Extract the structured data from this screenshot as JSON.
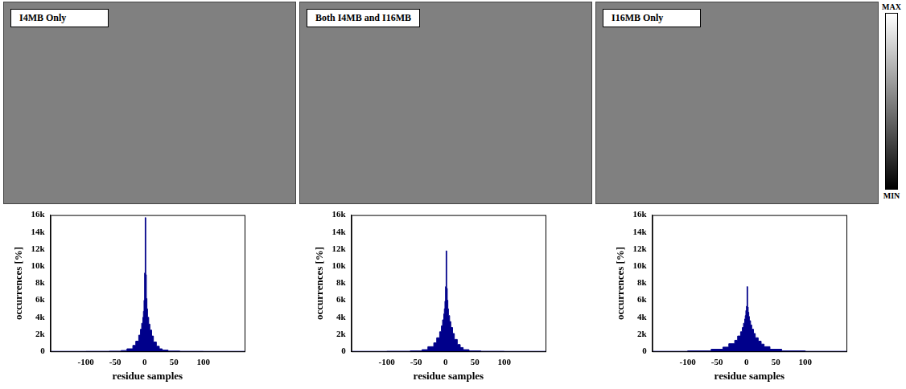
{
  "residue_images": [
    {
      "title": "I4MB Only"
    },
    {
      "title": "Both I4MB and I16MB"
    },
    {
      "title": "I16MB Only"
    }
  ],
  "colorbar": {
    "max_label": "MAX",
    "min_label": "MIN"
  },
  "chart_data": [
    {
      "type": "histogram",
      "color": "#00008b",
      "grid": false,
      "x_label": "residue samples",
      "y_label": "occurrences [%]",
      "bins": [
        -160,
        -100,
        -60,
        -40,
        -30,
        -20,
        -15,
        -10,
        -7,
        -5,
        -3,
        -2,
        -1,
        0,
        1,
        2,
        3,
        4,
        5,
        7,
        9,
        12,
        15,
        20,
        25,
        30,
        40,
        60,
        100,
        170
      ],
      "values": [
        0,
        10,
        30,
        100,
        300,
        700,
        1200,
        1900,
        2600,
        3300,
        4000,
        4700,
        6000,
        9200,
        15700,
        9000,
        6200,
        5000,
        4000,
        3200,
        2500,
        1800,
        1100,
        600,
        300,
        150,
        40,
        10,
        0
      ],
      "xlim": [
        -160,
        170
      ],
      "xticks": [
        -100,
        -50,
        0,
        50,
        100
      ],
      "ylim": [
        0,
        16000
      ],
      "yticks": [
        {
          "value": 0,
          "label": "0"
        },
        {
          "value": 2000,
          "label": "2k"
        },
        {
          "value": 4000,
          "label": "4k"
        },
        {
          "value": 6000,
          "label": "6k"
        },
        {
          "value": 8000,
          "label": "8k"
        },
        {
          "value": 10000,
          "label": "10k"
        },
        {
          "value": 12000,
          "label": "12k"
        },
        {
          "value": 14000,
          "label": "14k"
        },
        {
          "value": 16000,
          "label": "16k"
        }
      ]
    },
    {
      "type": "histogram",
      "color": "#00008b",
      "grid": false,
      "x_label": "residue samples",
      "y_label": "occurrences [%]",
      "bins": [
        -160,
        -100,
        -60,
        -40,
        -30,
        -20,
        -15,
        -10,
        -7,
        -5,
        -3,
        -2,
        -1,
        0,
        1,
        2,
        3,
        4,
        5,
        7,
        9,
        12,
        15,
        20,
        25,
        30,
        40,
        60,
        100,
        170
      ],
      "values": [
        0,
        20,
        60,
        200,
        550,
        1000,
        1600,
        2300,
        3000,
        3700,
        4400,
        5000,
        5900,
        7600,
        11800,
        7400,
        6000,
        5000,
        4200,
        3500,
        2800,
        2100,
        1400,
        800,
        450,
        200,
        60,
        15,
        0
      ],
      "xlim": [
        -160,
        170
      ],
      "xticks": [
        -100,
        -50,
        0,
        50,
        100
      ],
      "ylim": [
        0,
        16000
      ],
      "yticks": [
        {
          "value": 0,
          "label": "0"
        },
        {
          "value": 2000,
          "label": "2k"
        },
        {
          "value": 4000,
          "label": "4k"
        },
        {
          "value": 6000,
          "label": "6k"
        },
        {
          "value": 8000,
          "label": "8k"
        },
        {
          "value": 10000,
          "label": "10k"
        },
        {
          "value": 12000,
          "label": "12k"
        },
        {
          "value": 14000,
          "label": "14k"
        },
        {
          "value": 16000,
          "label": "16k"
        }
      ]
    },
    {
      "type": "histogram",
      "color": "#00008b",
      "grid": false,
      "x_label": "residue samples",
      "y_label": "occurrences [%]",
      "bins": [
        -160,
        -100,
        -60,
        -40,
        -30,
        -20,
        -15,
        -10,
        -7,
        -5,
        -3,
        -2,
        -1,
        0,
        1,
        2,
        3,
        4,
        5,
        7,
        9,
        12,
        15,
        20,
        25,
        30,
        40,
        60,
        100,
        170
      ],
      "values": [
        5,
        60,
        250,
        500,
        900,
        1300,
        1800,
        2300,
        2800,
        3300,
        3800,
        4200,
        4800,
        5300,
        7600,
        5200,
        4600,
        4100,
        3600,
        3100,
        2600,
        2100,
        1600,
        1200,
        850,
        550,
        250,
        60,
        5
      ],
      "xlim": [
        -160,
        170
      ],
      "xticks": [
        -100,
        -50,
        0,
        50,
        100
      ],
      "ylim": [
        0,
        16000
      ],
      "yticks": [
        {
          "value": 0,
          "label": "0"
        },
        {
          "value": 2000,
          "label": "2k"
        },
        {
          "value": 4000,
          "label": "4k"
        },
        {
          "value": 6000,
          "label": "6k"
        },
        {
          "value": 8000,
          "label": "8k"
        },
        {
          "value": 10000,
          "label": "10k"
        },
        {
          "value": 12000,
          "label": "12k"
        },
        {
          "value": 14000,
          "label": "14k"
        },
        {
          "value": 16000,
          "label": "16k"
        }
      ]
    }
  ]
}
